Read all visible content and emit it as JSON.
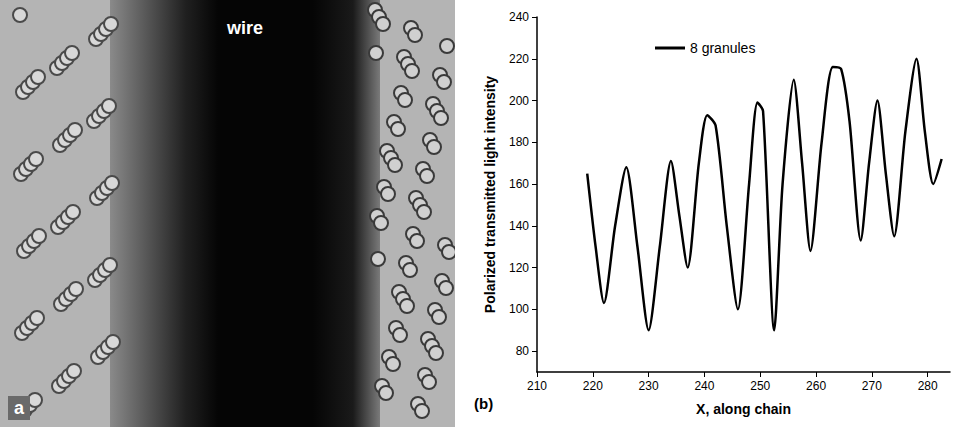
{
  "image_panel": {
    "panel_label": "a",
    "annotations": [
      "wire"
    ]
  },
  "chart_data": {
    "type": "line",
    "panel_label": "(b)",
    "xlabel": "X, along chain",
    "ylabel": "Polarized transmitted light intensity",
    "x": [
      219,
      220.5,
      222,
      224,
      226,
      228,
      230,
      232,
      234,
      235.5,
      237,
      239,
      240.5,
      242,
      244,
      246,
      248,
      249.5,
      250.5,
      252.5,
      254,
      256,
      257.5,
      259,
      261,
      263,
      264.5,
      266,
      268,
      269.5,
      271,
      272.5,
      274,
      276,
      278,
      279.5,
      281,
      282.5
    ],
    "series": [
      {
        "name": "8 granules",
        "color": "#000000",
        "values": [
          165,
          130,
          103,
          140,
          168,
          130,
          90,
          130,
          171,
          145,
          120,
          170,
          193,
          188,
          140,
          100,
          160,
          199,
          195,
          90,
          160,
          210,
          170,
          128,
          180,
          216,
          215,
          190,
          133,
          170,
          200,
          165,
          135,
          185,
          220,
          185,
          160,
          172
        ]
      }
    ],
    "xlim": [
      210,
      284
    ],
    "xticks": [
      210,
      220,
      230,
      240,
      250,
      260,
      270,
      280
    ],
    "ylim": [
      70,
      240
    ],
    "yticks": [
      80,
      100,
      120,
      140,
      160,
      180,
      200,
      220,
      240
    ],
    "grid": false,
    "legend": "upper left"
  }
}
